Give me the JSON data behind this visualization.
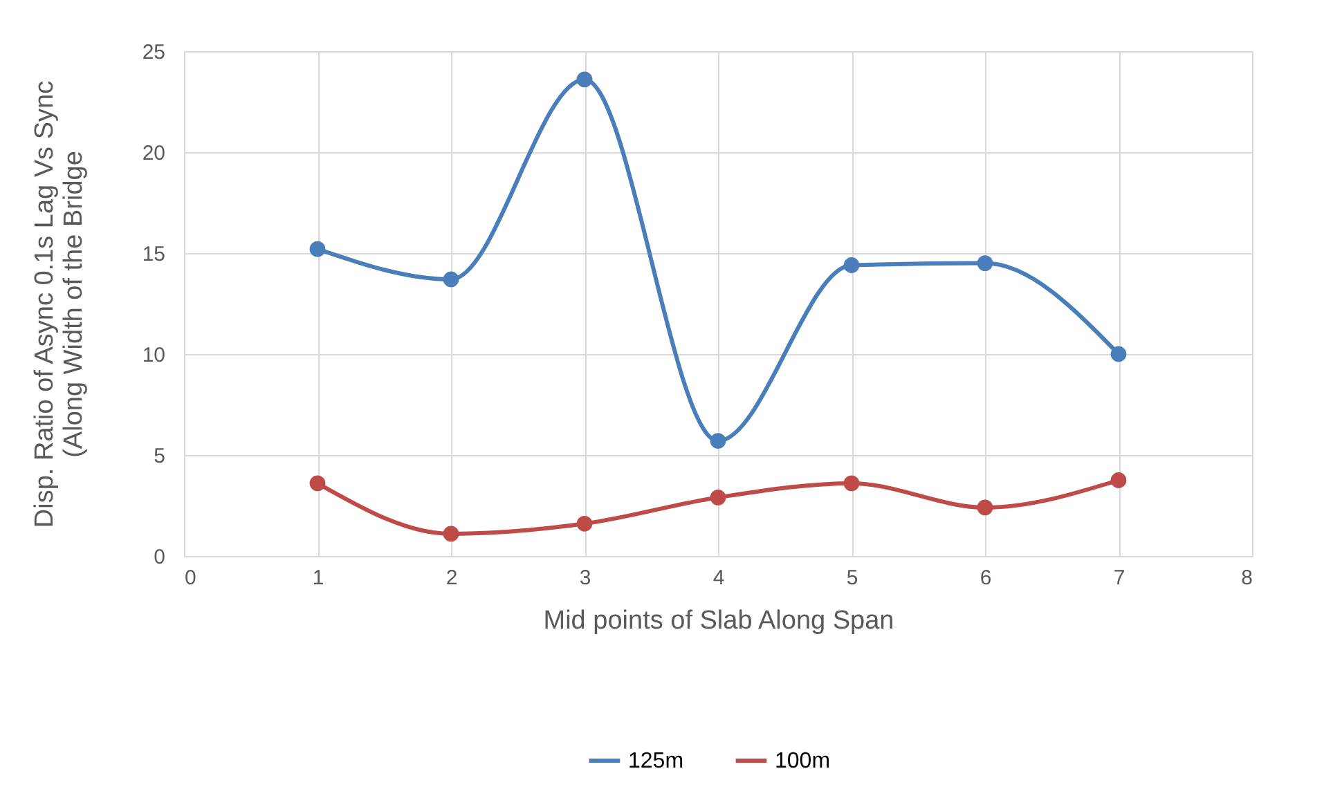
{
  "chart_data": {
    "type": "line",
    "xlabel": "Mid points of Slab Along Span",
    "ylabel": "Disp. Ratio of Async 0.1s Lag Vs Sync\n(Along Width of the Bridge",
    "x": [
      1,
      2,
      3,
      4,
      5,
      6,
      7
    ],
    "series": [
      {
        "name": "125m",
        "color": "#4a7ebb",
        "values": [
          15.2,
          13.7,
          23.6,
          5.7,
          14.4,
          14.5,
          10.0
        ]
      },
      {
        "name": "100m",
        "color": "#be4b48",
        "values": [
          3.6,
          1.1,
          1.6,
          2.9,
          3.6,
          2.4,
          3.75
        ]
      }
    ],
    "xlim": [
      0,
      8
    ],
    "xticks": [
      0,
      1,
      2,
      3,
      4,
      5,
      6,
      7,
      8
    ],
    "ylim": [
      0,
      25
    ],
    "yticks": [
      0,
      5,
      10,
      15,
      20,
      25
    ],
    "grid": true,
    "legend": "bottom",
    "marker": "circle",
    "line_style": "solid"
  }
}
